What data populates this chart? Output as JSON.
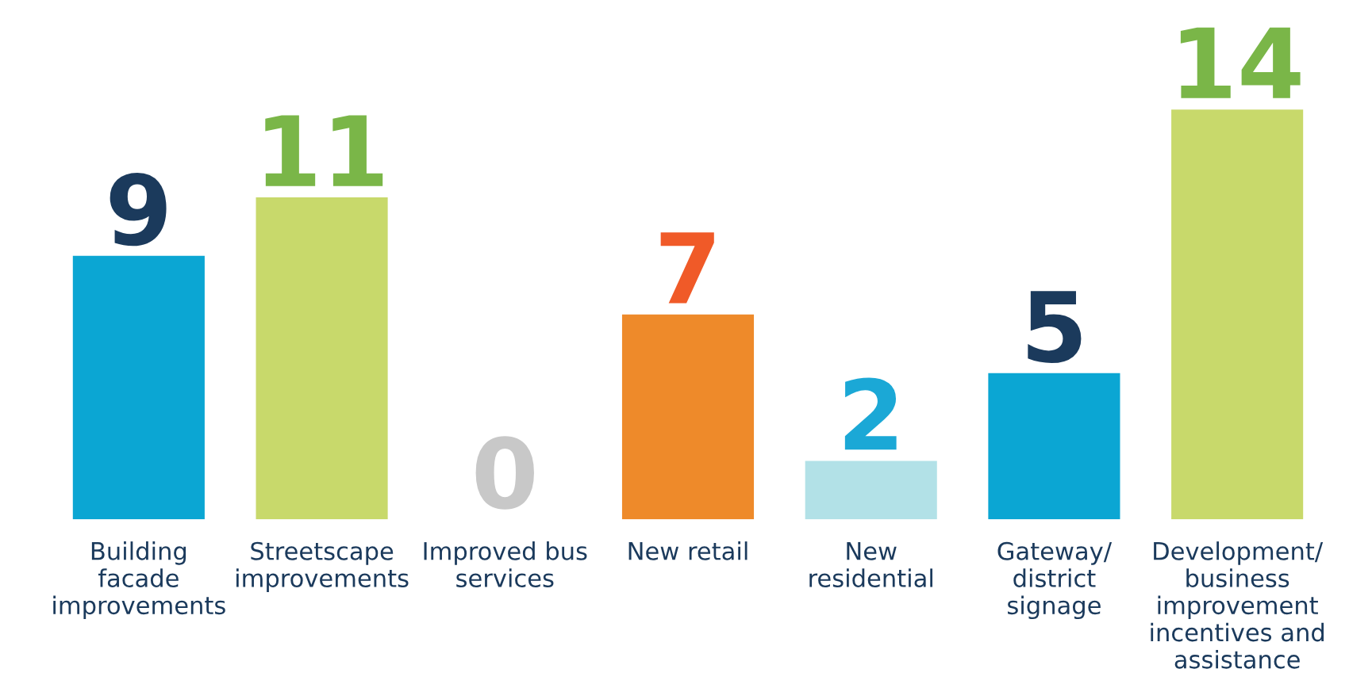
{
  "chart_data": {
    "type": "bar",
    "categories": [
      "Building facade improvements",
      "Streetscape improvements",
      "Improved bus services",
      "New retail",
      "New residential",
      "Gateway/ district signage",
      "Development/ business improvement incentives and assistance"
    ],
    "values": [
      9,
      11,
      0,
      7,
      2,
      5,
      14
    ],
    "colors": [
      "#0ba6d3",
      "#c8d96b",
      "#c8c8c8",
      "#ee8a2a",
      "#b2e1e7",
      "#0ba6d3",
      "#c8d96b"
    ],
    "data_labels": true
  }
}
